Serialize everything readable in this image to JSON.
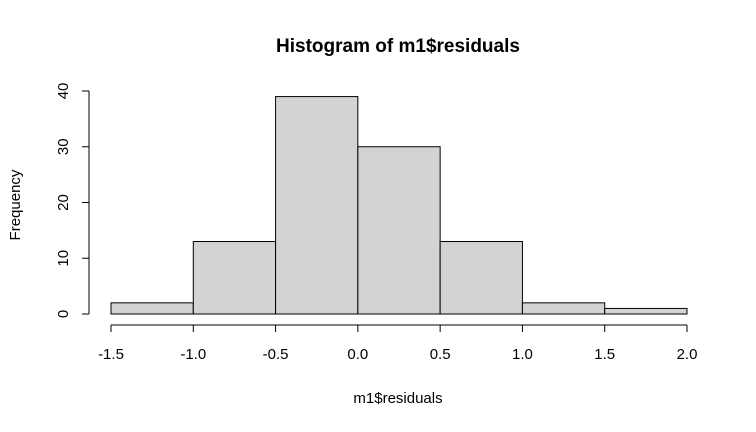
{
  "chart_data": {
    "type": "bar",
    "title": "Histogram of m1$residuals",
    "xlabel": "m1$residuals",
    "ylabel": "Frequency",
    "bins": [
      {
        "start": -1.5,
        "end": -1.0,
        "value": 2
      },
      {
        "start": -1.0,
        "end": -0.5,
        "value": 13
      },
      {
        "start": -0.5,
        "end": 0.0,
        "value": 39
      },
      {
        "start": 0.0,
        "end": 0.5,
        "value": 30
      },
      {
        "start": 0.5,
        "end": 1.0,
        "value": 13
      },
      {
        "start": 1.0,
        "end": 1.5,
        "value": 2
      },
      {
        "start": 1.5,
        "end": 2.0,
        "value": 1
      }
    ],
    "xlim": [
      -1.5,
      2.0
    ],
    "ylim": [
      0,
      40
    ],
    "x_ticks": [
      -1.5,
      -1.0,
      -0.5,
      0.0,
      0.5,
      1.0,
      1.5,
      2.0
    ],
    "x_tick_labels": [
      "-1.5",
      "-1.0",
      "-0.5",
      "0.0",
      "0.5",
      "1.0",
      "1.5",
      "2.0"
    ],
    "y_ticks": [
      0,
      10,
      20,
      30,
      40
    ],
    "y_tick_labels": [
      "0",
      "10",
      "20",
      "30",
      "40"
    ],
    "bar_fill": "#d3d3d3",
    "bar_stroke": "#000000",
    "grid": false,
    "legend": "none"
  }
}
